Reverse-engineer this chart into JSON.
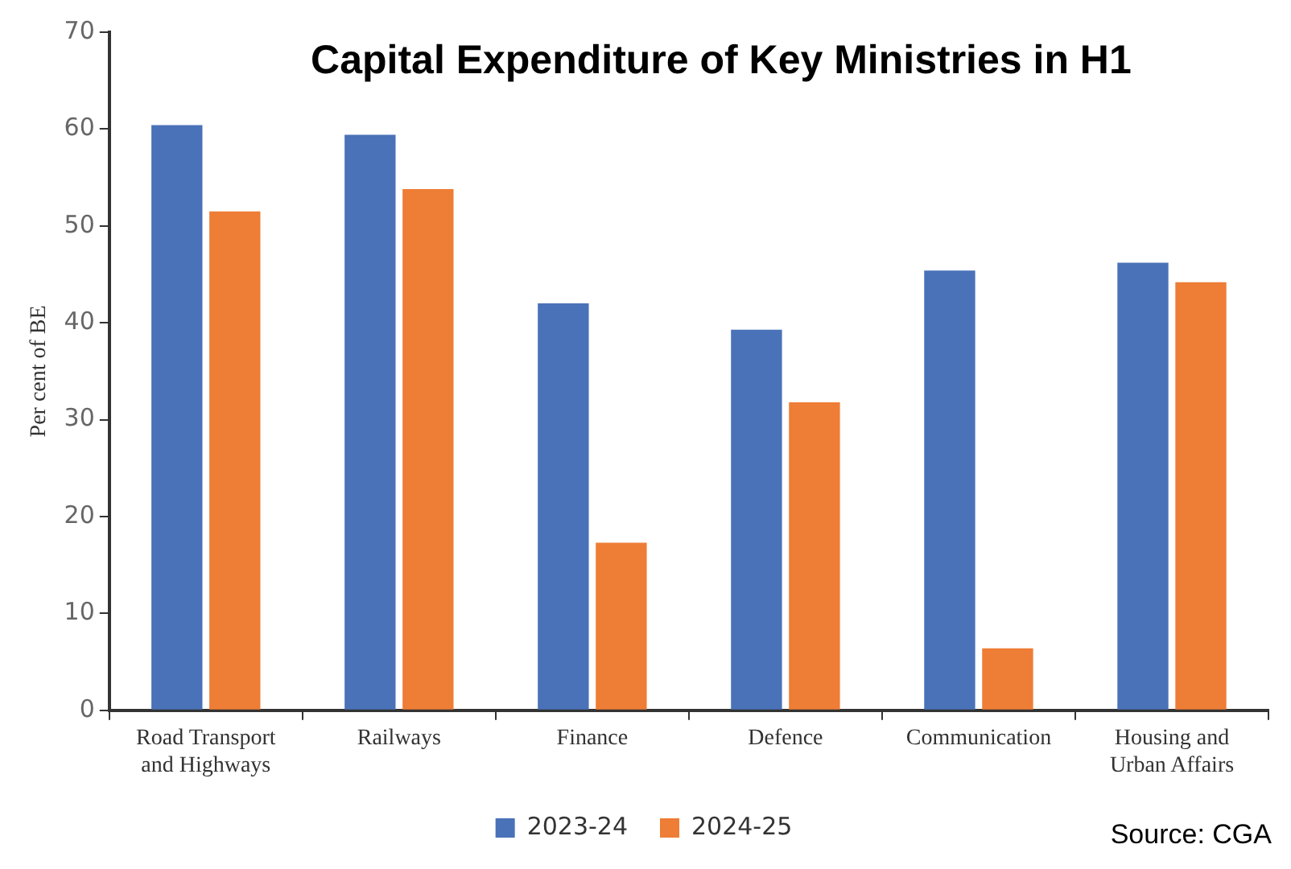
{
  "chart_data": {
    "type": "bar",
    "title": "Capital Expenditure of Key Ministries in H1",
    "ylabel": "Per cent of BE",
    "categories": [
      "Road Transport and Highways",
      "Railways",
      "Finance",
      "Defence",
      "Communication",
      "Housing and Urban Affairs"
    ],
    "series": [
      {
        "name": "2023-24",
        "color": "#4a72b8",
        "values": [
          60.4,
          59.4,
          42.0,
          39.3,
          45.4,
          46.2
        ]
      },
      {
        "name": "2024-25",
        "color": "#ee7d35",
        "values": [
          51.5,
          53.8,
          17.3,
          31.8,
          6.4,
          44.2
        ]
      }
    ],
    "ylim": [
      0,
      70
    ],
    "yticks": [
      0,
      10,
      20,
      30,
      40,
      50,
      60,
      70
    ],
    "grid": false,
    "legend": "bottom",
    "annotations": [
      "Source: CGA"
    ]
  }
}
